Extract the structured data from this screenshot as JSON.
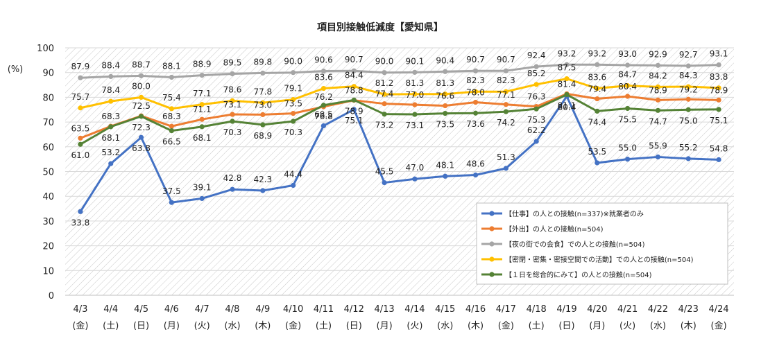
{
  "chart_data": {
    "type": "line",
    "title": "項目別接触低減度【愛知県】",
    "ylabel": "(%)",
    "ylim": [
      0,
      100
    ],
    "yticks": [
      "0",
      "10",
      "20",
      "30",
      "40",
      "50",
      "60",
      "70",
      "80",
      "90",
      "100"
    ],
    "categories": [
      "4/3",
      "4/4",
      "4/5",
      "4/6",
      "4/7",
      "4/8",
      "4/9",
      "4/10",
      "4/11",
      "4/12",
      "4/13",
      "4/14",
      "4/15",
      "4/16",
      "4/17",
      "4/18",
      "4/19",
      "4/20",
      "4/21",
      "4/22",
      "4/23",
      "4/24"
    ],
    "weekdays": [
      "(金)",
      "(土)",
      "(日)",
      "(月)",
      "(火)",
      "(水)",
      "(木)",
      "(金)",
      "(土)",
      "(日)",
      "(月)",
      "(火)",
      "(水)",
      "(木)",
      "(金)",
      "(土)",
      "(日)",
      "(月)",
      "(火)",
      "(水)",
      "(木)",
      "(金)"
    ],
    "legend_position": "bottom-right",
    "series": [
      {
        "name": "【仕事】の人との接触(n=337)※就業者のみ",
        "color": "#4472c4",
        "values": [
          33.8,
          53.2,
          63.8,
          37.5,
          39.1,
          42.8,
          42.3,
          44.4,
          68.5,
          75.1,
          45.5,
          47.0,
          48.1,
          48.6,
          51.3,
          62.2,
          80.4,
          53.5,
          55.0,
          55.9,
          55.2,
          54.8
        ],
        "labels": [
          "33.8",
          "53.2",
          "63.8",
          "37.5",
          "39.1",
          "42.8",
          "42.3",
          "44.4",
          "68.5",
          "75.1",
          "45.5",
          "47.0",
          "48.1",
          "48.6",
          "51.3",
          "62.2",
          "80.4",
          "53.5",
          "55.0",
          "55.9",
          "55.2",
          "54.8"
        ]
      },
      {
        "name": "【外出】の人との接触(n=504)",
        "color": "#ed7d31",
        "values": [
          63.5,
          68.3,
          72.5,
          68.3,
          71.1,
          73.1,
          73.0,
          73.5,
          76.2,
          78.8,
          77.4,
          77.0,
          76.6,
          78.0,
          77.1,
          76.3,
          81.4,
          79.4,
          80.4,
          78.9,
          79.2,
          78.9
        ],
        "labels": [
          "63.5",
          "68.3",
          "72.5",
          "68.3",
          "71.1",
          "73.1",
          "73.0",
          "73.5",
          "76.2",
          "78.8",
          "77.4",
          "77.0",
          "76.6",
          "78.0",
          "77.1",
          "76.3",
          "81.4",
          "79.4",
          "80.4",
          "78.9",
          "79.2",
          "78.9"
        ]
      },
      {
        "name": "【夜の街での会食】での人との接触(n=504)",
        "color": "#a5a5a5",
        "values": [
          87.9,
          88.4,
          88.7,
          88.1,
          88.9,
          89.5,
          89.8,
          90.0,
          90.6,
          90.7,
          90.0,
          90.1,
          90.4,
          90.7,
          90.7,
          92.4,
          93.2,
          93.2,
          93.0,
          92.9,
          92.7,
          93.1
        ],
        "labels": [
          "87.9",
          "88.4",
          "88.7",
          "88.1",
          "88.9",
          "89.5",
          "89.8",
          "90.0",
          "90.6",
          "90.7",
          "90.0",
          "90.1",
          "90.4",
          "90.7",
          "90.7",
          "92.4",
          "93.2",
          "93.2",
          "93.0",
          "92.9",
          "92.7",
          "93.1"
        ]
      },
      {
        "name": "【密閉・密集・密接空間での活動】での人との接触(n=504)",
        "color": "#ffc000",
        "values": [
          75.7,
          78.4,
          80.0,
          75.4,
          77.1,
          78.6,
          77.8,
          79.1,
          83.6,
          84.4,
          81.2,
          81.3,
          81.3,
          82.3,
          82.3,
          85.2,
          87.5,
          83.6,
          84.7,
          84.2,
          84.3,
          83.8
        ],
        "labels": [
          "75.7",
          "78.4",
          "80.0",
          "75.4",
          "77.1",
          "78.6",
          "77.8",
          "79.1",
          "83.6",
          "84.4",
          "81.2",
          "81.3",
          "81.3",
          "82.3",
          "82.3",
          "85.2",
          "87.5",
          "83.6",
          "84.7",
          "84.2",
          "84.3",
          "83.8"
        ]
      },
      {
        "name": "【１日を総合的にみて】の人との接触(n=504)",
        "color": "#548235",
        "values": [
          61.0,
          68.1,
          72.3,
          66.5,
          68.1,
          70.3,
          68.9,
          70.3,
          76.8,
          78.9,
          73.2,
          73.1,
          73.5,
          73.6,
          74.2,
          75.3,
          81.1,
          74.4,
          75.5,
          74.7,
          75.0,
          75.1
        ],
        "labels": [
          "61.0",
          "68.1",
          "72.3",
          "66.5",
          "68.1",
          "70.3",
          "68.9",
          "70.3",
          "76.8",
          "78.9",
          "73.2",
          "73.1",
          "73.5",
          "73.6",
          "74.2",
          "75.3",
          "81.1",
          "74.4",
          "75.5",
          "74.7",
          "75.0",
          "75.1"
        ]
      }
    ]
  }
}
